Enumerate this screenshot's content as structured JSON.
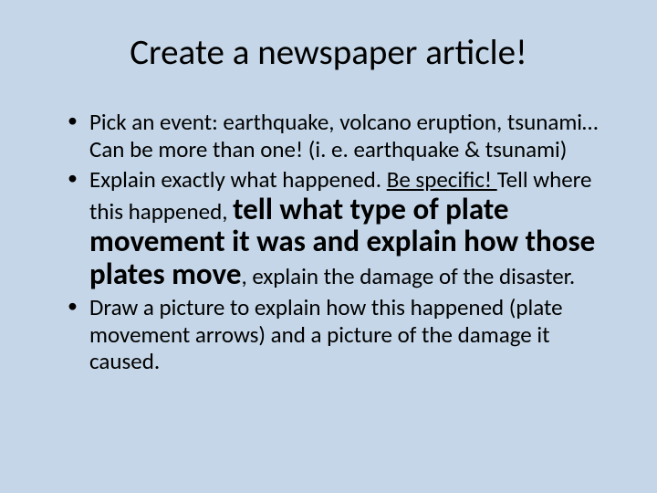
{
  "title": "Create a newspaper article!",
  "bullets": {
    "b1": "Pick an event: earthquake, volcano eruption, tsunami…Can be more than one! (i. e. earthquake & tsunami)",
    "b2_a": "Explain exactly what happened. ",
    "b2_b": "Be specific! ",
    "b2_c": "Tell where this happened, ",
    "b2_d": "tell what type of plate movement it was and explain how those plates move",
    "b2_e": ", explain the damage of the disaster.",
    "b3": "Draw a picture to explain how this happened (plate movement arrows) and a picture of the damage it caused."
  },
  "colors": {
    "background": "#c4d6e7",
    "text": "#000000"
  },
  "typography": {
    "title_fontsize": 39,
    "body_fontsize": 25,
    "emph_fontsize": 33,
    "font_family": "Calibri"
  }
}
